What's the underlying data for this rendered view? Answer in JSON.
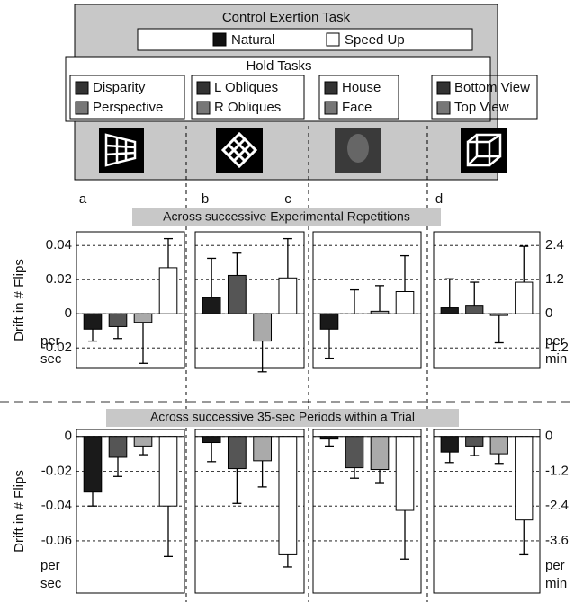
{
  "header": {
    "title": "Control Exertion Task",
    "legend": [
      {
        "label": "Natural",
        "color": "#111111"
      },
      {
        "label": "Speed Up",
        "color": "#ffffff"
      }
    ],
    "hold_title": "Hold Tasks",
    "hold_groups": [
      [
        {
          "label": "Disparity",
          "color": "#333333"
        },
        {
          "label": "Perspective",
          "color": "#777777"
        }
      ],
      [
        {
          "label": "L Obliques",
          "color": "#333333"
        },
        {
          "label": "R Obliques",
          "color": "#777777"
        }
      ],
      [
        {
          "label": "House",
          "color": "#333333"
        },
        {
          "label": "Face",
          "color": "#777777"
        }
      ],
      [
        {
          "label": "Bottom View",
          "color": "#333333"
        },
        {
          "label": "Top View",
          "color": "#777777"
        }
      ]
    ]
  },
  "panel_labels": [
    "a",
    "b",
    "c",
    "d"
  ],
  "chart_data": [
    {
      "type": "bar",
      "title": "Across successive Experimental Repetitions",
      "ylabel": "Drift in # Flips",
      "unit_left": [
        "per",
        "sec"
      ],
      "unit_right": [
        "per",
        "min"
      ],
      "ylim": [
        -0.032,
        0.048
      ],
      "yticks": [
        -0.02,
        0,
        0.02,
        0.04
      ],
      "y2lim": [
        -1.92,
        2.88
      ],
      "y2ticks": [
        -1.2,
        0,
        1.2,
        2.4
      ],
      "grid": true,
      "bar_colors": [
        "#1a1a1a",
        "#555555",
        "#aaaaaa",
        "#ffffff"
      ],
      "panels": [
        {
          "values": [
            -0.009,
            -0.0075,
            -0.005,
            0.027
          ],
          "errors": [
            0.007,
            0.007,
            0.024,
            0.017
          ]
        },
        {
          "values": [
            0.0095,
            0.0225,
            -0.016,
            0.021
          ],
          "errors": [
            0.023,
            0.013,
            0.018,
            0.023
          ]
        },
        {
          "values": [
            -0.009,
            0.0,
            0.0015,
            0.013
          ],
          "errors": [
            0.017,
            0.014,
            0.015,
            0.021
          ]
        },
        {
          "values": [
            0.0035,
            0.0045,
            -0.001,
            0.0185
          ],
          "errors": [
            0.017,
            0.014,
            0.016,
            0.021
          ]
        }
      ]
    },
    {
      "type": "bar",
      "title": "Across successive 35-sec Periods within a Trial",
      "ylabel": "Drift in # Flips",
      "unit_left": [
        "per",
        "sec"
      ],
      "unit_right": [
        "per",
        "min"
      ],
      "ylim": [
        -0.09,
        0.004
      ],
      "yticks": [
        -0.06,
        -0.04,
        -0.02,
        0
      ],
      "y2lim": [
        -5.4,
        0.24
      ],
      "y2ticks": [
        -3.6,
        -2.4,
        -1.2,
        0
      ],
      "grid": true,
      "bar_colors": [
        "#1a1a1a",
        "#555555",
        "#aaaaaa",
        "#ffffff"
      ],
      "panels": [
        {
          "values": [
            -0.032,
            -0.012,
            -0.0055,
            -0.04
          ],
          "errors": [
            0.008,
            0.011,
            0.005,
            0.029
          ]
        },
        {
          "values": [
            -0.0035,
            -0.0185,
            -0.014,
            -0.068
          ],
          "errors": [
            0.011,
            0.02,
            0.015,
            0.007
          ]
        },
        {
          "values": [
            -0.0015,
            -0.018,
            -0.019,
            -0.0425
          ],
          "errors": [
            0.004,
            0.006,
            0.008,
            0.028
          ]
        },
        {
          "values": [
            -0.009,
            -0.0055,
            -0.01,
            -0.048
          ],
          "errors": [
            0.006,
            0.0055,
            0.0055,
            0.02
          ]
        }
      ]
    }
  ]
}
